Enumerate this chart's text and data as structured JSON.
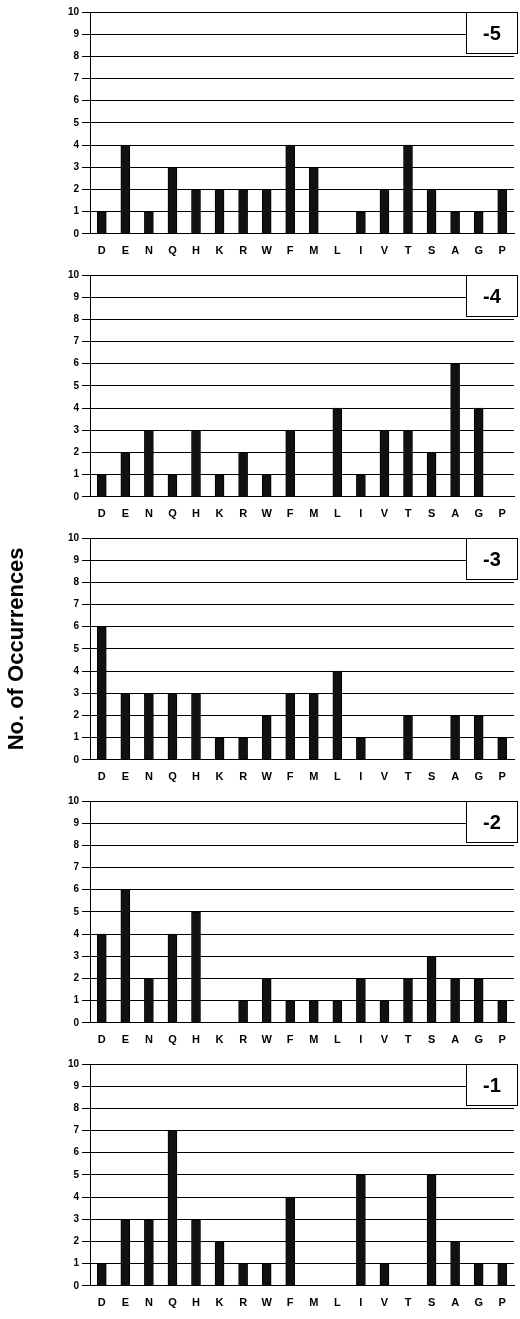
{
  "chart_data": [
    {
      "type": "bar",
      "title": "-5",
      "categories": [
        "D",
        "E",
        "N",
        "Q",
        "H",
        "K",
        "R",
        "W",
        "F",
        "M",
        "L",
        "I",
        "V",
        "T",
        "S",
        "A",
        "G",
        "P"
      ],
      "values": [
        1,
        4,
        1,
        3,
        2,
        2,
        2,
        2,
        4,
        3,
        0,
        1,
        2,
        4,
        2,
        1,
        1,
        2
      ],
      "color": "#111111",
      "ylim": [
        0,
        10
      ],
      "yticks": [
        0,
        1,
        2,
        3,
        4,
        5,
        6,
        7,
        8,
        9,
        10
      ],
      "grid": "y"
    },
    {
      "type": "bar",
      "title": "-4",
      "categories": [
        "D",
        "E",
        "N",
        "Q",
        "H",
        "K",
        "R",
        "W",
        "F",
        "M",
        "L",
        "I",
        "V",
        "T",
        "S",
        "A",
        "G",
        "P"
      ],
      "values": [
        1,
        2,
        3,
        1,
        3,
        1,
        2,
        1,
        3,
        0,
        4,
        1,
        3,
        3,
        2,
        6,
        4,
        0
      ],
      "color": "#111111",
      "ylim": [
        0,
        10
      ],
      "yticks": [
        0,
        1,
        2,
        3,
        4,
        5,
        6,
        7,
        8,
        9,
        10
      ],
      "grid": "y"
    },
    {
      "type": "bar",
      "title": "-3",
      "ylabel": "No. of Occurrences",
      "categories": [
        "D",
        "E",
        "N",
        "Q",
        "H",
        "K",
        "R",
        "W",
        "F",
        "M",
        "L",
        "I",
        "V",
        "T",
        "S",
        "A",
        "G",
        "P"
      ],
      "values": [
        6,
        3,
        3,
        3,
        3,
        1,
        1,
        2,
        3,
        3,
        4,
        1,
        0,
        2,
        0,
        2,
        2,
        1
      ],
      "color": "#111111",
      "ylim": [
        0,
        10
      ],
      "yticks": [
        0,
        1,
        2,
        3,
        4,
        5,
        6,
        7,
        8,
        9,
        10
      ],
      "grid": "y"
    },
    {
      "type": "bar",
      "title": "-2",
      "categories": [
        "D",
        "E",
        "N",
        "Q",
        "H",
        "K",
        "R",
        "W",
        "F",
        "M",
        "L",
        "I",
        "V",
        "T",
        "S",
        "A",
        "G",
        "P"
      ],
      "values": [
        4,
        6,
        2,
        4,
        5,
        0,
        1,
        2,
        1,
        1,
        1,
        2,
        1,
        2,
        3,
        2,
        2,
        1
      ],
      "color": "#111111",
      "ylim": [
        0,
        10
      ],
      "yticks": [
        0,
        1,
        2,
        3,
        4,
        5,
        6,
        7,
        8,
        9,
        10
      ],
      "grid": "y"
    },
    {
      "type": "bar",
      "title": "-1",
      "categories": [
        "D",
        "E",
        "N",
        "Q",
        "H",
        "K",
        "R",
        "W",
        "F",
        "M",
        "L",
        "I",
        "V",
        "T",
        "S",
        "A",
        "G",
        "P"
      ],
      "values": [
        1,
        3,
        3,
        7,
        3,
        2,
        1,
        1,
        4,
        0,
        0,
        5,
        1,
        0,
        5,
        2,
        1,
        1
      ],
      "color": "#111111",
      "ylim": [
        0,
        10
      ],
      "yticks": [
        0,
        1,
        2,
        3,
        4,
        5,
        6,
        7,
        8,
        9,
        10
      ],
      "grid": "y"
    }
  ]
}
